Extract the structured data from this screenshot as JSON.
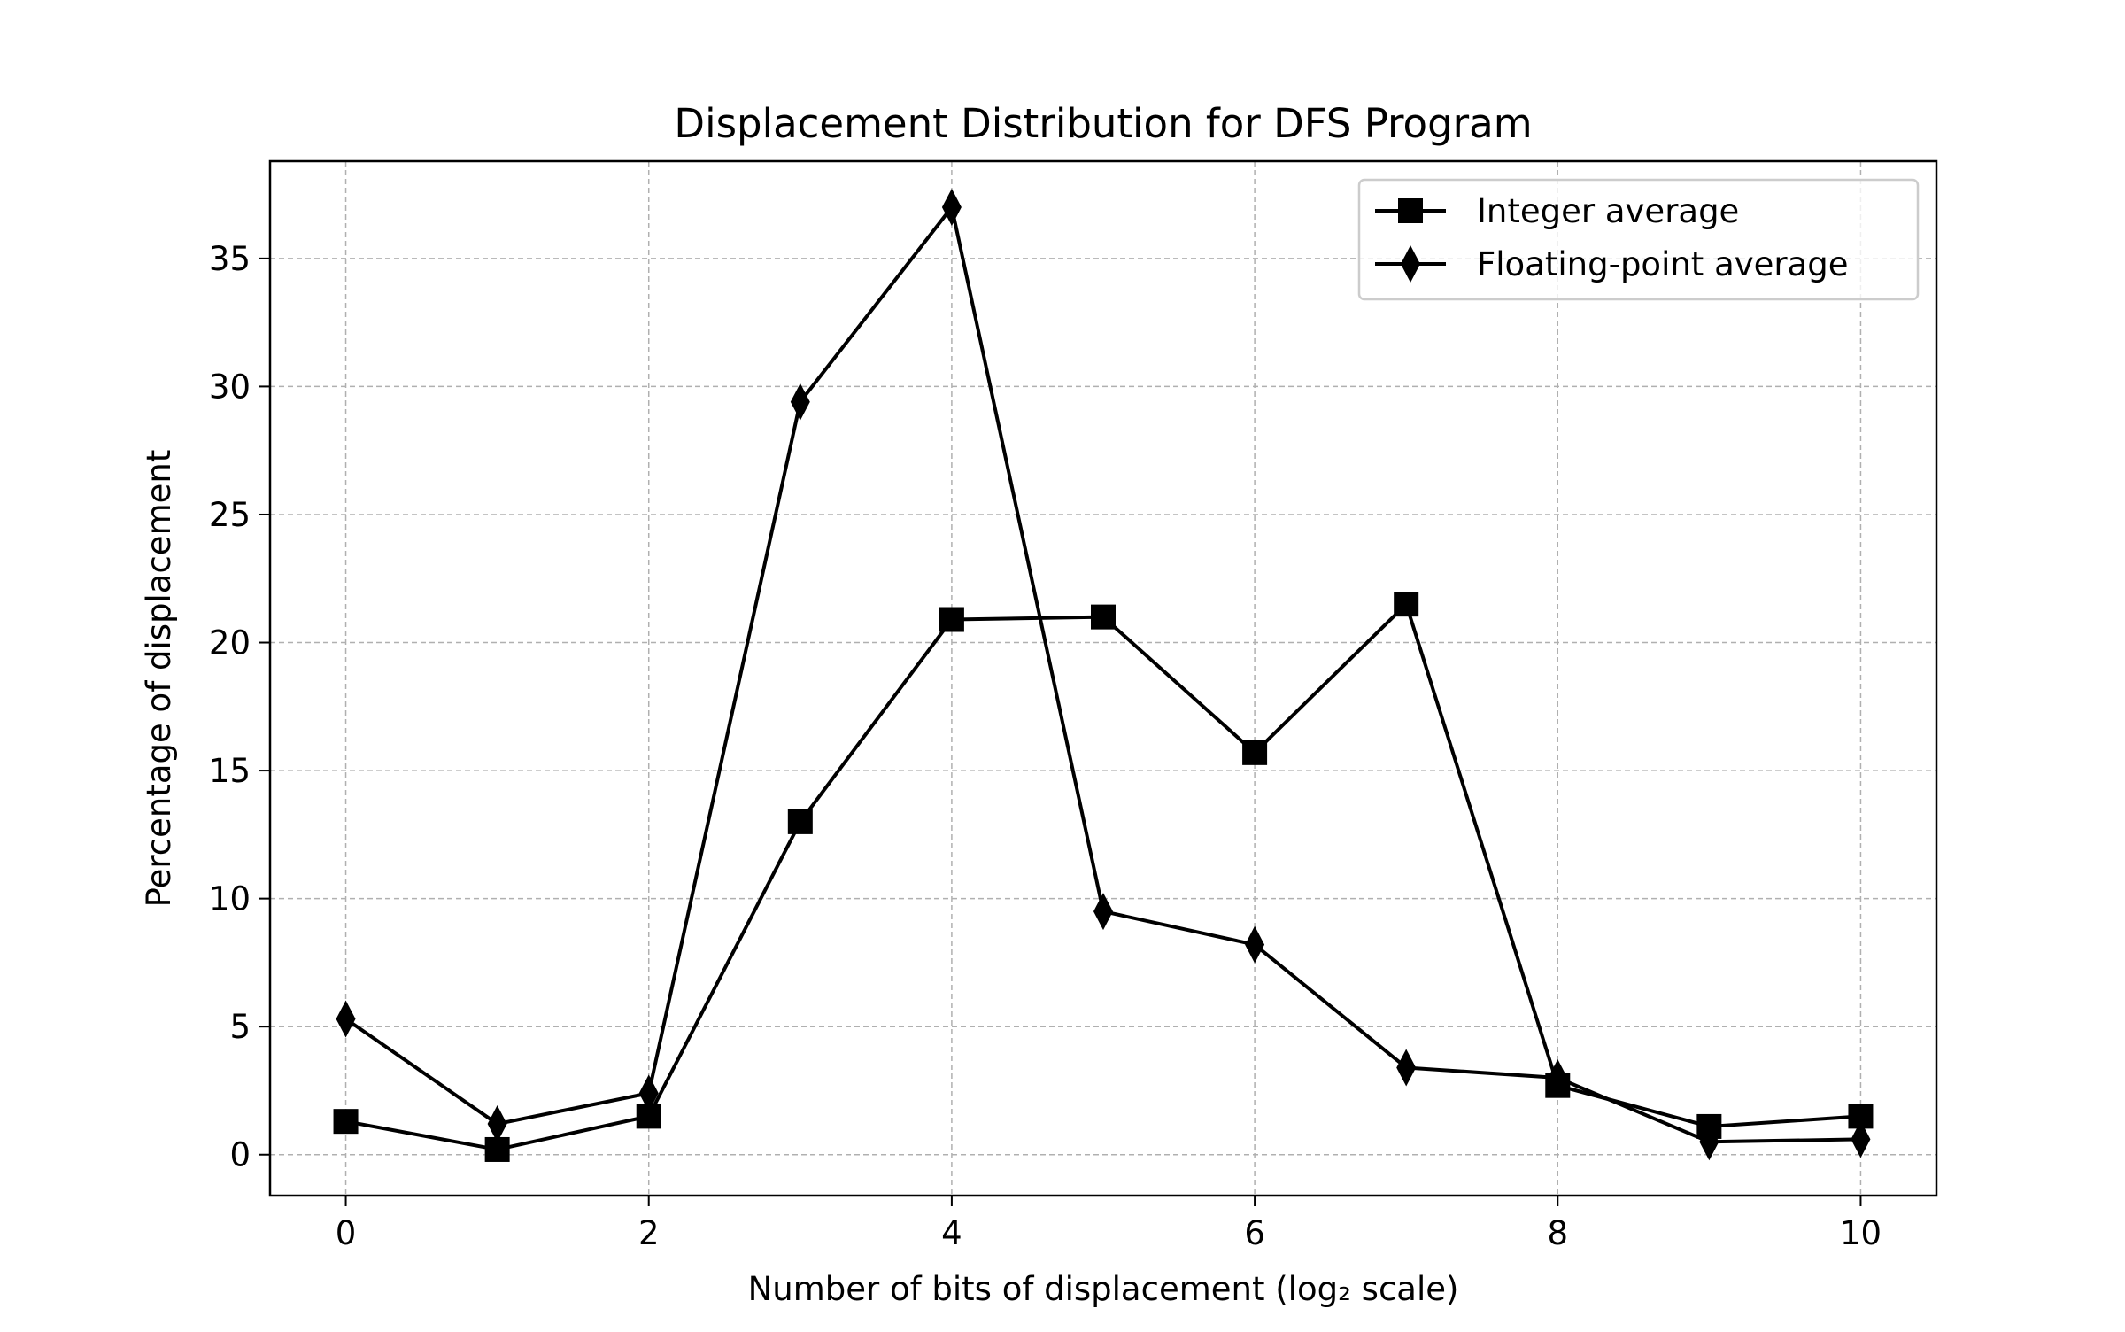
{
  "chart_data": {
    "type": "line",
    "title": "Displacement Distribution for DFS Program",
    "xlabel": "Number of bits of displacement (log₂ scale)",
    "ylabel": "Percentage of displacement",
    "xlim": [
      -0.5,
      10.5
    ],
    "ylim": [
      -1.6,
      38.8
    ],
    "x": [
      0,
      1,
      2,
      3,
      4,
      5,
      6,
      7,
      8,
      9,
      10
    ],
    "x_ticks": [
      0,
      2,
      4,
      6,
      8,
      10
    ],
    "y_ticks": [
      0,
      5,
      10,
      15,
      20,
      25,
      30,
      35
    ],
    "grid": true,
    "legend_position": "upper right",
    "series": [
      {
        "name": "Integer average",
        "marker": "square",
        "color": "#000000",
        "values": [
          1.3,
          0.2,
          1.5,
          13.0,
          20.9,
          21.0,
          15.7,
          21.5,
          2.7,
          1.1,
          1.5
        ]
      },
      {
        "name": "Floating-point average",
        "marker": "diamond",
        "color": "#000000",
        "values": [
          5.3,
          1.2,
          2.4,
          29.4,
          37.0,
          9.5,
          8.2,
          3.4,
          3.0,
          0.5,
          0.6
        ]
      }
    ]
  }
}
